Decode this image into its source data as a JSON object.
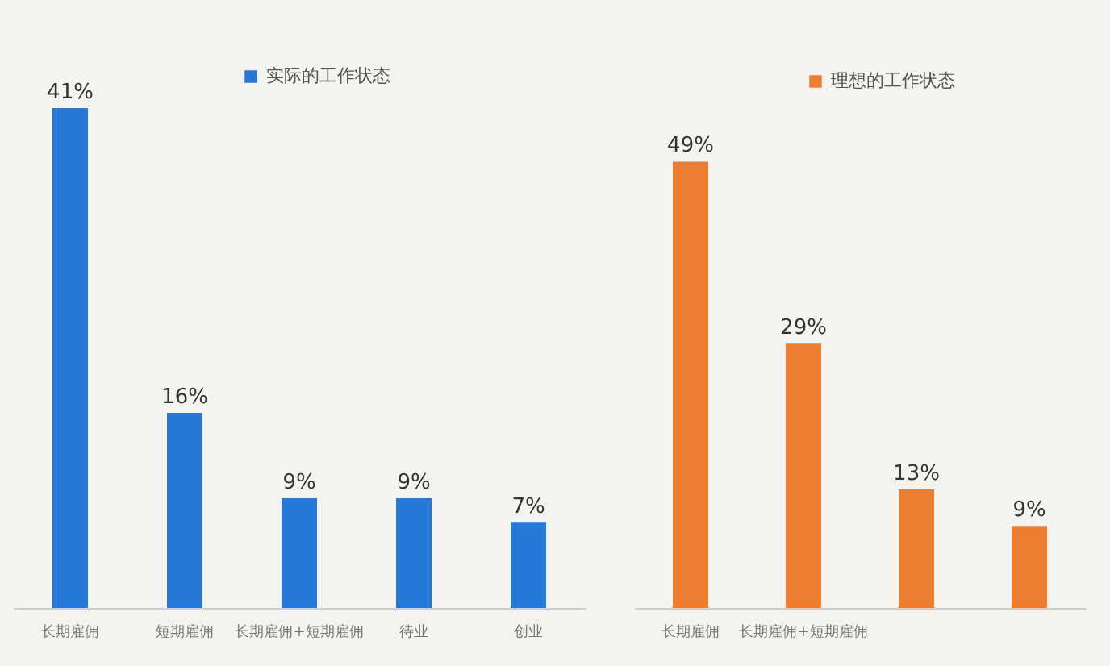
{
  "chart_data": [
    {
      "type": "bar",
      "categories": [
        "长期雇佣",
        "短期雇佣",
        "长期雇佣+短期雇佣",
        "待业",
        "创业"
      ],
      "series": [
        {
          "name": "实际的工作状态",
          "color": "#2878d8",
          "values": [
            41,
            16,
            9,
            9,
            7
          ],
          "value_labels": [
            "41%",
            "16%",
            "9%",
            "9%",
            "7%"
          ]
        }
      ],
      "legend": "top",
      "grid": false
    },
    {
      "type": "bar",
      "categories": [
        "长期雇佣",
        "长期雇佣+短期雇佣",
        null,
        null
      ],
      "series": [
        {
          "name": "理想的工作状态",
          "color": "#ed7d31",
          "values": [
            49,
            29,
            13,
            9
          ],
          "value_labels": [
            "49%",
            "29%",
            "13%",
            "9%"
          ]
        }
      ],
      "legend": "top right",
      "grid": false
    }
  ]
}
